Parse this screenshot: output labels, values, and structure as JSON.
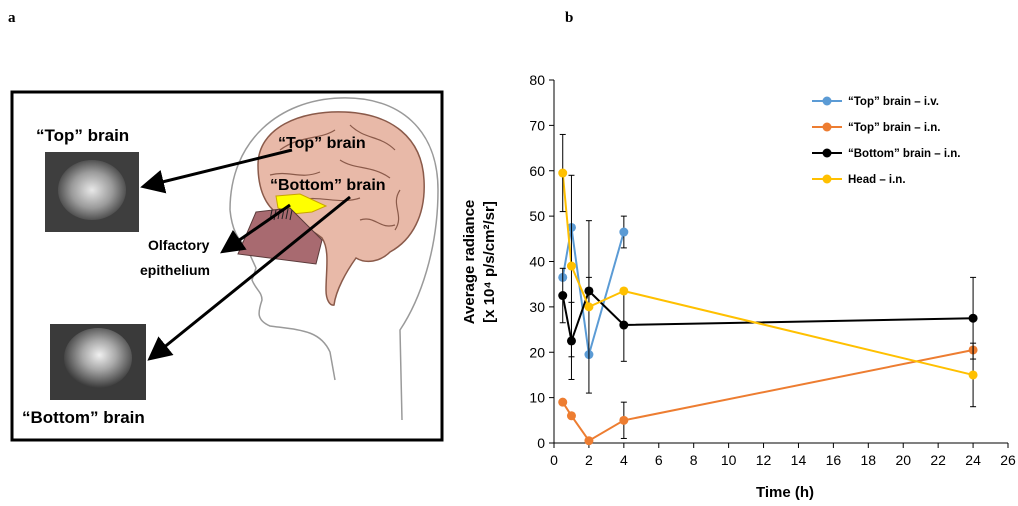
{
  "panel_a": {
    "letter": "a",
    "top_brain_label": "“Top” brain",
    "top_brain_inner_label": "“Top” brain",
    "bottom_brain_inner_label": "“Bottom” brain",
    "olfactory_label_line1": "Olfactory",
    "olfactory_label_line2": "epithelium",
    "bottom_brain_label": "“Bottom” brain"
  },
  "panel_b": {
    "letter": "b"
  },
  "chart_data": {
    "type": "line",
    "xlabel": "Time (h)",
    "ylabel_line1": "Average radiance",
    "ylabel_line2": "[x 10⁴ p/s/cm²/sr]",
    "xlim": [
      0,
      26
    ],
    "ylim": [
      0,
      80
    ],
    "xticks": [
      0,
      2,
      4,
      6,
      8,
      10,
      12,
      14,
      16,
      18,
      20,
      22,
      24,
      26
    ],
    "yticks": [
      0,
      10,
      20,
      30,
      40,
      50,
      60,
      70,
      80
    ],
    "legend_position": "top-right",
    "series": [
      {
        "name": "“Top” brain – i.v.",
        "color": "#5b9bd5",
        "x": [
          0.5,
          1,
          2,
          4
        ],
        "y": [
          36.5,
          47.5,
          19.5,
          46.5
        ],
        "err": [
          0,
          0,
          0,
          3.5
        ]
      },
      {
        "name": "“Top” brain – i.n.",
        "color": "#ed7d31",
        "x": [
          0.5,
          1,
          2,
          4,
          24
        ],
        "y": [
          9,
          6,
          0.5,
          5,
          20.5
        ],
        "err": [
          0,
          0,
          0,
          4,
          0
        ]
      },
      {
        "name": "“Bottom” brain – i.n.",
        "color": "#000000",
        "x": [
          0.5,
          1,
          2,
          4,
          24
        ],
        "y": [
          32.5,
          22.5,
          33.5,
          26,
          27.5
        ],
        "err": [
          6,
          8.5,
          3,
          8,
          9
        ]
      },
      {
        "name": "Head – i.n.",
        "color": "#ffc000",
        "x": [
          0.5,
          1,
          2,
          4,
          24
        ],
        "y": [
          59.5,
          39,
          30,
          33.5,
          15
        ],
        "err": [
          8.5,
          20,
          19,
          0,
          7
        ]
      }
    ]
  }
}
